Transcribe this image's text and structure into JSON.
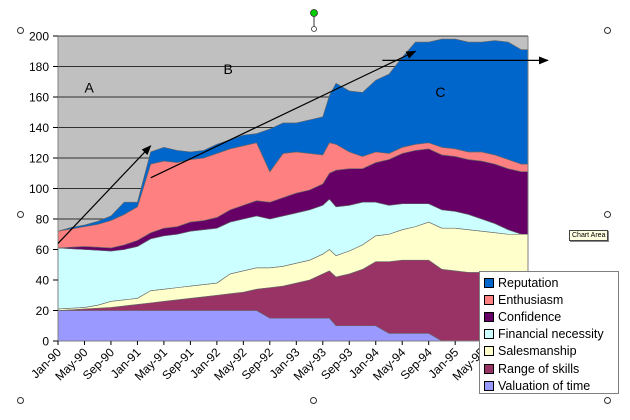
{
  "chart_data": {
    "type": "area",
    "stacked": true,
    "title": "",
    "xlabel": "",
    "ylabel": "",
    "ylim": [
      0,
      200
    ],
    "yticks": [
      0,
      20,
      40,
      60,
      80,
      100,
      120,
      140,
      160,
      180,
      200
    ],
    "grid": true,
    "legend_position": "bottom-right",
    "x_months_from_jan_1990": [
      0,
      2,
      4,
      6,
      8,
      10,
      12,
      14,
      16,
      18,
      20,
      22,
      24,
      26,
      28,
      30,
      32,
      34,
      36,
      38,
      40,
      41,
      42,
      44,
      46,
      48,
      50,
      52,
      54,
      56,
      58,
      60,
      62,
      64,
      66,
      68,
      70
    ],
    "xtick_labels": [
      "Jan-90",
      "May-90",
      "Sep-90",
      "Jan-91",
      "May-91",
      "Sep-91",
      "Jan-92",
      "May-92",
      "Sep-92",
      "Jan-93",
      "May-93",
      "Sep-93",
      "Jan-94",
      "May-94",
      "Sep-94",
      "Jan-95",
      "May-95",
      "Sep-95"
    ],
    "series": [
      {
        "name": "Valuation of time",
        "color": "#9999FF",
        "values": [
          20,
          20,
          20,
          20,
          20,
          20,
          20,
          20,
          20,
          20,
          20,
          20,
          20,
          20,
          20,
          20,
          15,
          15,
          15,
          15,
          15,
          15,
          10,
          10,
          10,
          10,
          5,
          5,
          5,
          5,
          0,
          0,
          0,
          0,
          0,
          0,
          0
        ]
      },
      {
        "name": "Range of skills",
        "color": "#993366",
        "values": [
          0,
          0.5,
          1,
          1.5,
          2,
          3,
          4,
          5,
          6,
          7,
          8,
          9,
          10,
          11,
          12,
          14,
          20,
          21,
          23,
          25,
          29,
          31,
          32,
          34,
          37,
          42,
          47,
          48,
          48,
          48,
          47,
          46,
          45,
          45,
          45,
          45,
          45
        ]
      },
      {
        "name": "Salesmanship",
        "color": "#FFFFCC",
        "values": [
          1,
          1,
          1,
          2,
          4,
          4,
          4,
          8,
          8,
          8,
          8,
          8,
          8,
          13,
          14,
          14,
          13,
          13,
          13,
          13,
          13,
          14,
          14,
          15,
          16,
          17,
          18,
          20,
          22,
          25,
          27,
          28,
          28,
          27,
          26,
          25,
          25
        ]
      },
      {
        "name": "Financial necessity",
        "color": "#CCFFFF",
        "values": [
          40,
          39,
          38,
          36,
          33,
          33,
          34,
          34,
          35,
          35,
          36,
          36,
          36,
          34,
          34,
          34,
          32,
          33,
          33,
          33,
          32,
          33,
          32,
          30,
          28,
          22,
          19,
          17,
          15,
          12,
          12,
          11,
          10,
          8,
          6,
          3,
          0
        ]
      },
      {
        "name": "Confidence",
        "color": "#660066",
        "values": [
          0,
          1,
          2,
          2,
          2,
          3,
          4,
          4,
          5,
          5,
          6,
          6,
          7,
          8,
          9,
          10,
          11,
          12,
          13,
          13,
          14,
          17,
          24,
          24,
          22,
          26,
          30,
          33,
          35,
          36,
          36,
          36,
          36,
          38,
          39,
          40,
          41
        ]
      },
      {
        "name": "Enthusiasm",
        "color": "#FF8080",
        "values": [
          11,
          12,
          13,
          15,
          18,
          20,
          22,
          45,
          44,
          42,
          41,
          41,
          42,
          40,
          39,
          38,
          20,
          29,
          27,
          24,
          19,
          20,
          17,
          11,
          8,
          7,
          4,
          4,
          4,
          4,
          5,
          5,
          5,
          6,
          6,
          6,
          5
        ]
      },
      {
        "name": "Reputation",
        "color": "#0066CC",
        "values": [
          0,
          1,
          1,
          2,
          3,
          8,
          3,
          8,
          9,
          8,
          5,
          5,
          6,
          6,
          7,
          6,
          28,
          20,
          19,
          22,
          25,
          31,
          40,
          40,
          42,
          47,
          52,
          59,
          67,
          66,
          71,
          72,
          72,
          72,
          75,
          77,
          75
        ]
      }
    ],
    "annotations": [
      {
        "text": "A",
        "x_month": 4,
        "y": 163
      },
      {
        "text": "B",
        "x_month": 25,
        "y": 175
      },
      {
        "text": "C",
        "x_month": 57,
        "y": 160
      }
    ],
    "trend_arrows": [
      {
        "from": [
          0,
          64
        ],
        "to": [
          14,
          128
        ]
      },
      {
        "from": [
          14,
          107
        ],
        "to": [
          54,
          190
        ]
      },
      {
        "from": [
          49,
          184
        ],
        "to": [
          74,
          184
        ]
      }
    ]
  },
  "ui": {
    "tooltip": "Chart Area"
  }
}
